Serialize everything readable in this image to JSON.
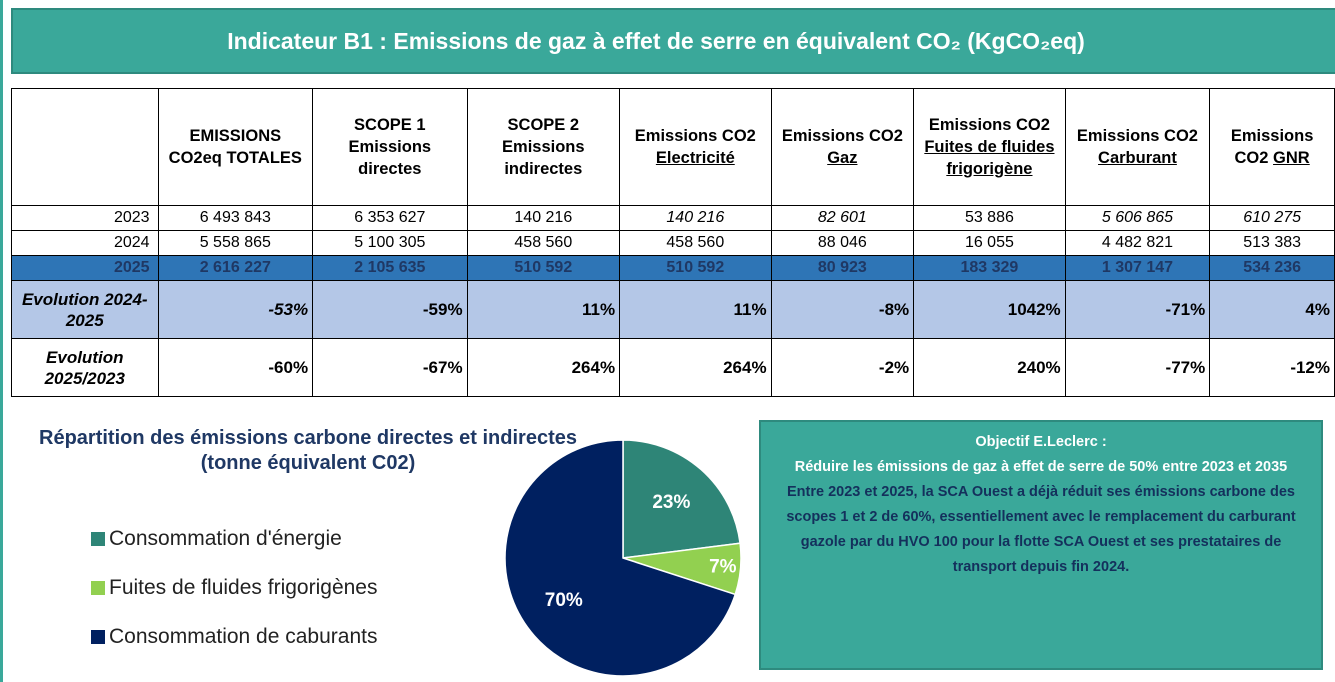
{
  "header": {
    "title": "Indicateur B1 : Emissions de gaz à effet de serre en équivalent CO₂ (KgCO₂eq)"
  },
  "table": {
    "columns": [
      {
        "plain": "EMISSIONS CO2eq TOTALES"
      },
      {
        "plain": "SCOPE 1 Emissions directes"
      },
      {
        "plain": "SCOPE 2 Emissions indirectes"
      },
      {
        "plain": "Emissions CO2",
        "underline": "Electricité"
      },
      {
        "plain": "Emissions CO2",
        "underline": "Gaz"
      },
      {
        "plain": "Emissions CO2",
        "underline": "Fuites de fluides frigorigène"
      },
      {
        "plain": "Emissions CO2",
        "underline": "Carburant"
      },
      {
        "plain": "Emissions CO2",
        "underline": "GNR"
      }
    ],
    "rows": [
      {
        "label": "2023",
        "cells": [
          "6 493 843",
          "6 353 627",
          "140 216",
          "140 216",
          "82 601",
          "53 886",
          "5 606 865",
          "610 275"
        ],
        "italic": [
          3,
          4,
          6,
          7
        ]
      },
      {
        "label": "2024",
        "cells": [
          "5 558 865",
          "5 100 305",
          "458 560",
          "458 560",
          "88 046",
          "16 055",
          "4 482 821",
          "513 383"
        ]
      },
      {
        "label": "2025",
        "cells": [
          "2 616 227",
          "2 105 635",
          "510 592",
          "510 592",
          "80 923",
          "183 329",
          "1 307 147",
          "534 236"
        ],
        "highlight": "current"
      },
      {
        "label": "Evolution 2024-2025",
        "cells": [
          "-53%",
          "-59%",
          "11%",
          "11%",
          "-8%",
          "1042%",
          "-71%",
          "4%"
        ],
        "italic": [
          0
        ],
        "highlight": "evolution"
      },
      {
        "label": "Evolution 2025/2023",
        "cells": [
          "-60%",
          "-67%",
          "264%",
          "264%",
          "-2%",
          "240%",
          "-77%",
          "-12%"
        ]
      }
    ]
  },
  "chart_data": {
    "type": "pie",
    "title": "Répartition des émissions carbone directes et indirectes (tonne équivalent C02)",
    "categories": [
      "Consommation d'énergie",
      "Fuites de fluides frigorigènes",
      "Consommation de caburants"
    ],
    "values": [
      23,
      7,
      70
    ],
    "value_labels": [
      "23%",
      "7%",
      "70%"
    ],
    "colors": [
      "#2e8577",
      "#92d050",
      "#002060"
    ]
  },
  "objective": {
    "title": "Objectif E.Leclerc :",
    "goal": "Réduire les émissions de gaz à effet de serre de 50% entre 2023 et 2035",
    "text": "Entre 2023 et 2025, la SCA Ouest a déjà réduit ses émissions carbone des scopes 1 et 2 de 60%, essentiellement avec le remplacement du carburant gazole par du HVO 100 pour la flotte SCA Ouest et ses prestataires de transport depuis fin 2024."
  }
}
